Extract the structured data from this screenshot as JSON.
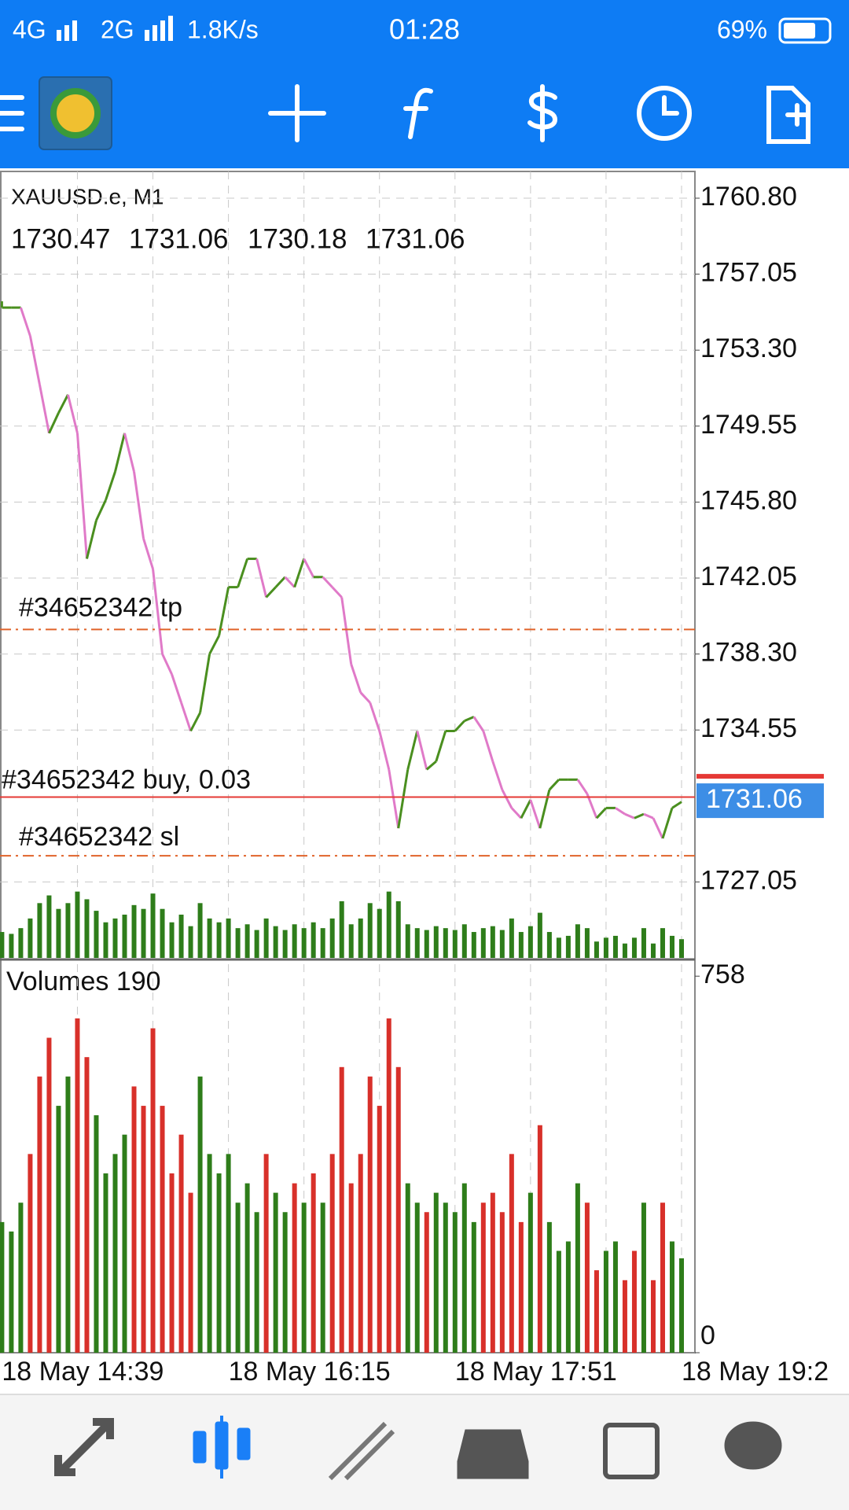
{
  "status_bar": {
    "network_1": "4G",
    "network_2": "2G",
    "speed": "1.8K/s",
    "time": "01:28",
    "battery": "69%"
  },
  "chart_data": [
    {
      "type": "price",
      "title": "XAUUSD.e, M1",
      "ohlc": [
        1730.47,
        1731.06,
        1730.18,
        1731.06
      ],
      "values": [
        1755.4,
        1755.4,
        1755.4,
        1754.0,
        1751.6,
        1749.2,
        1750.2,
        1751.1,
        1749.2,
        1743.0,
        1744.9,
        1745.9,
        1747.3,
        1749.2,
        1747.3,
        1744.0,
        1742.5,
        1738.3,
        1737.3,
        1735.9,
        1734.5,
        1735.4,
        1738.3,
        1739.2,
        1741.6,
        1741.6,
        1743.0,
        1743.0,
        1741.1,
        1741.6,
        1742.1,
        1741.6,
        1743.0,
        1742.1,
        1742.1,
        1741.6,
        1741.1,
        1737.8,
        1736.4,
        1735.9,
        1734.5,
        1732.6,
        1729.7,
        1732.6,
        1734.5,
        1732.6,
        1733.0,
        1734.5,
        1734.5,
        1735.0,
        1735.2,
        1734.5,
        1733.0,
        1731.6,
        1730.7,
        1730.2,
        1731.1,
        1729.7,
        1731.6,
        1732.1,
        1732.1,
        1732.1,
        1731.4,
        1730.2,
        1730.7,
        1730.7,
        1730.4,
        1730.2,
        1730.4,
        1730.2,
        1729.2,
        1730.7,
        1731.0
      ],
      "color_up": "#4a8f1f",
      "color_down": "#e07ac8",
      "ylim": [
        1723.3,
        1762.12
      ],
      "yticks": [
        {
          "value": 1760.8,
          "label": "1760.80"
        },
        1757.05,
        {
          "value": 1753.3,
          "label": "1753.30"
        },
        1749.55,
        {
          "value": 1745.8,
          "label": "1745.80"
        },
        1742.05,
        {
          "value": 1738.3,
          "label": "1738.30"
        },
        1734.55,
        1727.05
      ],
      "levels": [
        {
          "label": "#34652342 tp",
          "value": 1739.51,
          "color": "#e0632a",
          "style": "dashdot"
        },
        {
          "label": "#34652342 buy, 0.03",
          "value": 1731.24,
          "color": "#e53935",
          "style": "solid"
        },
        {
          "label": "#34652342 sl",
          "value": 1728.34,
          "color": "#e0632a",
          "style": "dashdot"
        }
      ],
      "last_price": 1731.06,
      "grid": true
    },
    {
      "type": "bar",
      "title": "Volumes 190",
      "categories": [
        "18 May 14:39",
        null,
        null,
        null,
        null,
        null,
        null,
        null,
        null,
        null,
        null,
        null,
        null,
        null,
        null,
        null,
        null,
        null,
        null,
        null,
        null,
        null,
        null,
        null,
        "18 May 16:15",
        null,
        null,
        null,
        null,
        null,
        null,
        null,
        null,
        null,
        null,
        null,
        null,
        null,
        null,
        null,
        null,
        null,
        null,
        null,
        null,
        null,
        null,
        null,
        "18 May 17:51",
        null,
        null,
        null,
        null,
        null,
        null,
        null,
        null,
        null,
        null,
        null,
        null,
        null,
        null,
        null,
        null,
        null,
        null,
        null,
        null,
        null,
        null,
        null,
        "18 May 19:2"
      ],
      "values": [
        263,
        244,
        302,
        400,
        556,
        634,
        497,
        556,
        673,
        595,
        478,
        361,
        400,
        439,
        536,
        497,
        653,
        497,
        361,
        439,
        322,
        556,
        400,
        361,
        400,
        302,
        341,
        283,
        400,
        322,
        283,
        341,
        302,
        361,
        302,
        400,
        575,
        341,
        400,
        556,
        497,
        673,
        575,
        341,
        302,
        283,
        322,
        302,
        283,
        341,
        263,
        302,
        322,
        283,
        400,
        263,
        322,
        458,
        263,
        205,
        224,
        341,
        302,
        166,
        205,
        224,
        146,
        205,
        302,
        146,
        302,
        224,
        190
      ],
      "color_up": "#2e7d1a",
      "color_down": "#d8302a",
      "ylim": [
        0,
        790
      ],
      "yticks": [
        0,
        758
      ]
    }
  ]
}
